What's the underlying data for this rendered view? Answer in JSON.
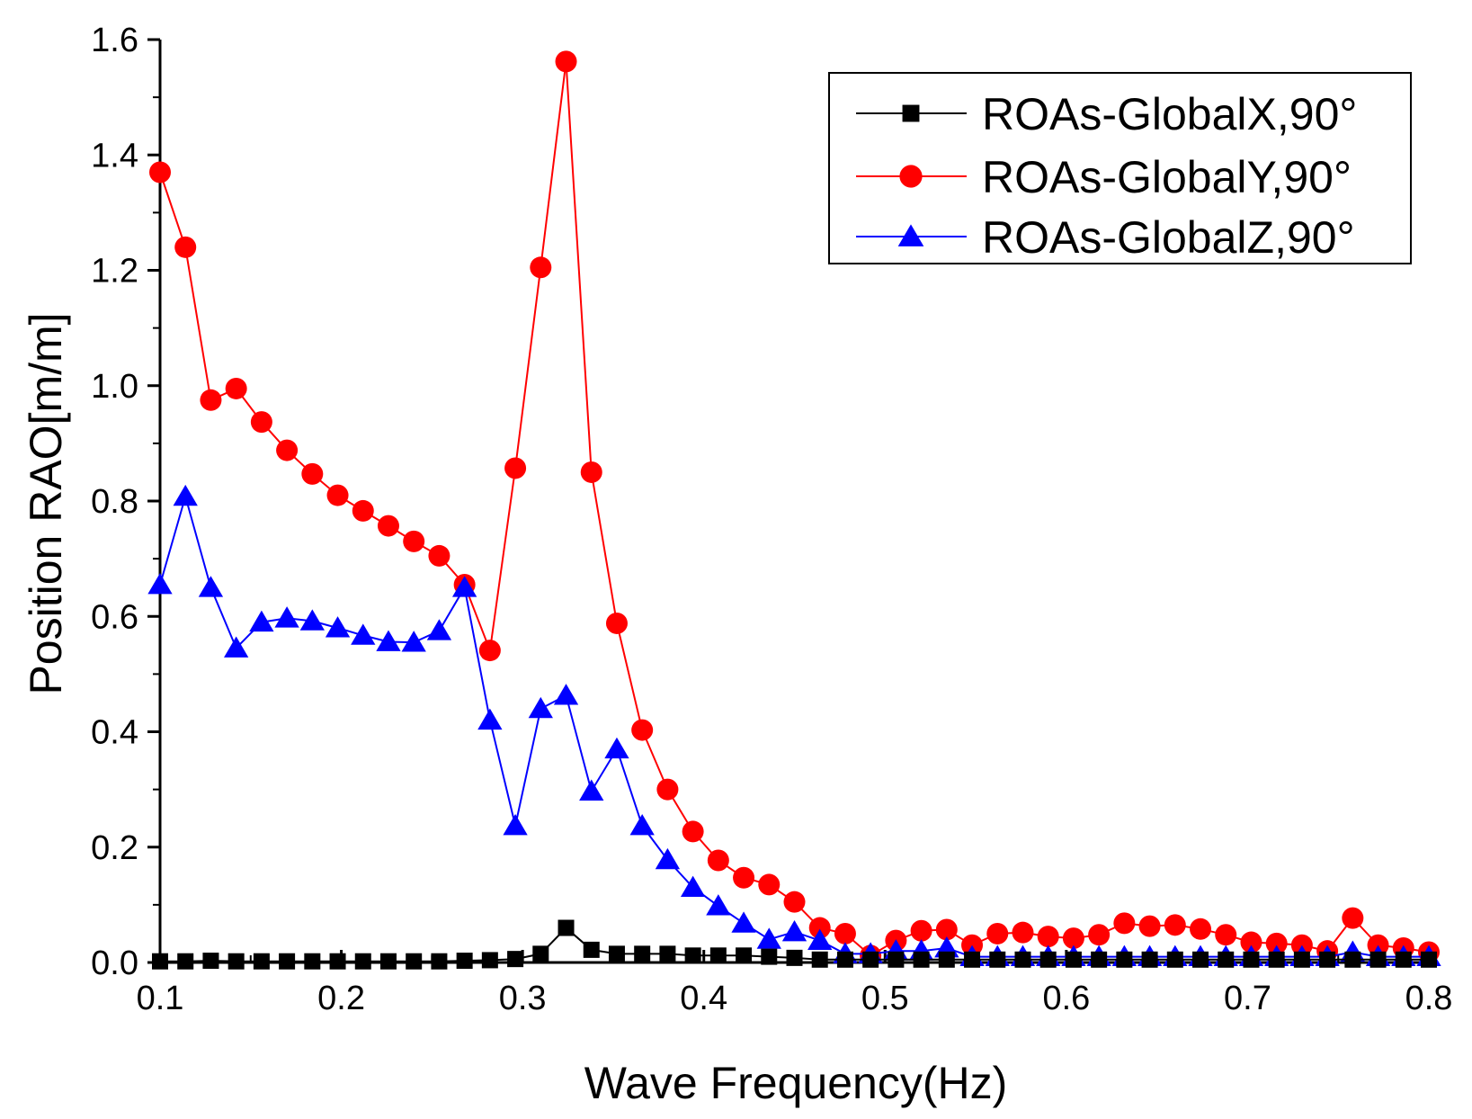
{
  "chart_data": {
    "type": "line",
    "title": "",
    "xlabel": "Wave Frequency(Hz)",
    "ylabel": "Position RAO[m/m]",
    "xlim": [
      0.1,
      0.8
    ],
    "ylim": [
      0.0,
      1.6
    ],
    "xticks": [
      "0.1",
      "0.2",
      "0.3",
      "0.4",
      "0.5",
      "0.6",
      "0.7",
      "0.8"
    ],
    "yticks": [
      "0.0",
      "0.2",
      "0.4",
      "0.6",
      "0.8",
      "1.0",
      "1.2",
      "1.4",
      "1.6"
    ],
    "grid": false,
    "legend_position": "top-right",
    "x": [
      0.1,
      0.114,
      0.128,
      0.142,
      0.156,
      0.17,
      0.184,
      0.198,
      0.212,
      0.226,
      0.24,
      0.254,
      0.268,
      0.282,
      0.296,
      0.31,
      0.324,
      0.338,
      0.352,
      0.366,
      0.38,
      0.394,
      0.408,
      0.422,
      0.436,
      0.45,
      0.464,
      0.478,
      0.492,
      0.506,
      0.52,
      0.534,
      0.548,
      0.562,
      0.576,
      0.59,
      0.604,
      0.618,
      0.632,
      0.646,
      0.66,
      0.674,
      0.688,
      0.702,
      0.716,
      0.73,
      0.744,
      0.758,
      0.772,
      0.786,
      0.8
    ],
    "series": [
      {
        "name": "ROAs-GlobalX,90°",
        "color": "#000000",
        "marker": "square",
        "values": [
          0.002,
          0.002,
          0.003,
          0.002,
          0.002,
          0.002,
          0.002,
          0.002,
          0.002,
          0.002,
          0.002,
          0.002,
          0.003,
          0.004,
          0.006,
          0.015,
          0.06,
          0.022,
          0.015,
          0.015,
          0.015,
          0.012,
          0.012,
          0.012,
          0.01,
          0.008,
          0.005,
          0.005,
          0.005,
          0.005,
          0.005,
          0.005,
          0.005,
          0.005,
          0.005,
          0.005,
          0.005,
          0.005,
          0.005,
          0.005,
          0.005,
          0.005,
          0.005,
          0.005,
          0.005,
          0.005,
          0.005,
          0.005,
          0.005,
          0.005,
          0.005
        ]
      },
      {
        "name": "ROAs-GlobalY,90°",
        "color": "#ff0000",
        "marker": "circle",
        "values": [
          1.37,
          1.24,
          0.975,
          0.995,
          0.937,
          0.888,
          0.847,
          0.81,
          0.783,
          0.757,
          0.73,
          0.705,
          0.655,
          0.541,
          0.857,
          1.205,
          1.562,
          0.85,
          0.588,
          0.403,
          0.3,
          0.227,
          0.177,
          0.147,
          0.135,
          0.105,
          0.06,
          0.05,
          0.012,
          0.038,
          0.055,
          0.057,
          0.03,
          0.05,
          0.052,
          0.045,
          0.042,
          0.048,
          0.068,
          0.063,
          0.065,
          0.058,
          0.048,
          0.035,
          0.033,
          0.03,
          0.02,
          0.077,
          0.03,
          0.025,
          0.018
        ]
      },
      {
        "name": "ROAs-GlobalZ,90°",
        "color": "#0000ff",
        "marker": "triangle",
        "values": [
          0.655,
          0.808,
          0.65,
          0.545,
          0.59,
          0.597,
          0.592,
          0.58,
          0.567,
          0.556,
          0.555,
          0.575,
          0.65,
          0.42,
          0.237,
          0.44,
          0.463,
          0.297,
          0.37,
          0.237,
          0.178,
          0.13,
          0.098,
          0.068,
          0.04,
          0.053,
          0.038,
          0.015,
          0.015,
          0.02,
          0.02,
          0.025,
          0.01,
          0.01,
          0.01,
          0.01,
          0.01,
          0.01,
          0.01,
          0.01,
          0.01,
          0.01,
          0.01,
          0.01,
          0.01,
          0.01,
          0.01,
          0.018,
          0.01,
          0.01,
          0.01
        ]
      }
    ]
  }
}
